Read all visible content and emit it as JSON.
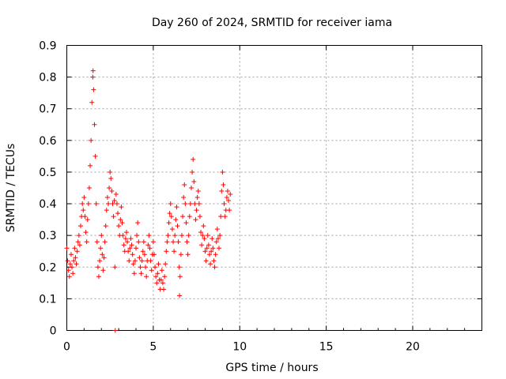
{
  "chart_data": {
    "type": "scatter",
    "title": "Day 260 of 2024, SRMTID for receiver iama",
    "xlabel": "GPS time / hours",
    "ylabel": "SRMTID / TECUs",
    "xlim": [
      0,
      24
    ],
    "ylim": [
      0,
      0.9
    ],
    "xticks": [
      "0",
      "5",
      "10",
      "15",
      "20"
    ],
    "yticks": [
      "0",
      "0.1",
      "0.2",
      "0.3",
      "0.4",
      "0.5",
      "0.6",
      "0.7",
      "0.8",
      "0.9"
    ],
    "grid": true,
    "marker": "+",
    "color": "#ff0000",
    "series": [
      {
        "name": "SRMTID",
        "points": [
          [
            0.0,
            0.26
          ],
          [
            0.05,
            0.22
          ],
          [
            0.1,
            0.19
          ],
          [
            0.15,
            0.17
          ],
          [
            0.2,
            0.21
          ],
          [
            0.25,
            0.24
          ],
          [
            0.3,
            0.2
          ],
          [
            0.35,
            0.18
          ],
          [
            0.4,
            0.22
          ],
          [
            0.45,
            0.26
          ],
          [
            0.5,
            0.23
          ],
          [
            0.55,
            0.21
          ],
          [
            0.6,
            0.25
          ],
          [
            0.65,
            0.28
          ],
          [
            0.7,
            0.3
          ],
          [
            0.75,
            0.27
          ],
          [
            0.8,
            0.33
          ],
          [
            0.85,
            0.36
          ],
          [
            0.9,
            0.4
          ],
          [
            0.95,
            0.38
          ],
          [
            1.0,
            0.42
          ],
          [
            1.05,
            0.36
          ],
          [
            1.1,
            0.31
          ],
          [
            1.15,
            0.28
          ],
          [
            1.2,
            0.35
          ],
          [
            1.25,
            0.4
          ],
          [
            1.3,
            0.45
          ],
          [
            1.35,
            0.52
          ],
          [
            1.4,
            0.6
          ],
          [
            1.45,
            0.72
          ],
          [
            1.5,
            0.8
          ],
          [
            1.52,
            0.82
          ],
          [
            1.55,
            0.76
          ],
          [
            1.6,
            0.65
          ],
          [
            1.65,
            0.55
          ],
          [
            1.7,
            0.4
          ],
          [
            1.75,
            0.28
          ],
          [
            1.8,
            0.2
          ],
          [
            1.85,
            0.17
          ],
          [
            1.9,
            0.22
          ],
          [
            1.95,
            0.26
          ],
          [
            2.0,
            0.3
          ],
          [
            2.05,
            0.24
          ],
          [
            2.1,
            0.19
          ],
          [
            2.15,
            0.23
          ],
          [
            2.2,
            0.28
          ],
          [
            2.25,
            0.33
          ],
          [
            2.3,
            0.38
          ],
          [
            2.35,
            0.42
          ],
          [
            2.4,
            0.4
          ],
          [
            2.45,
            0.45
          ],
          [
            2.5,
            0.5
          ],
          [
            2.55,
            0.48
          ],
          [
            2.6,
            0.44
          ],
          [
            2.65,
            0.4
          ],
          [
            2.7,
            0.36
          ],
          [
            2.75,
            0.41
          ],
          [
            2.78,
            0.2
          ],
          [
            2.8,
            0.0
          ],
          [
            2.85,
            0.43
          ],
          [
            2.9,
            0.4
          ],
          [
            2.95,
            0.37
          ],
          [
            3.0,
            0.33
          ],
          [
            3.05,
            0.3
          ],
          [
            3.1,
            0.35
          ],
          [
            3.15,
            0.39
          ],
          [
            3.2,
            0.34
          ],
          [
            3.25,
            0.3
          ],
          [
            3.3,
            0.27
          ],
          [
            3.35,
            0.25
          ],
          [
            3.4,
            0.29
          ],
          [
            3.45,
            0.31
          ],
          [
            3.5,
            0.28
          ],
          [
            3.55,
            0.25
          ],
          [
            3.6,
            0.22
          ],
          [
            3.65,
            0.26
          ],
          [
            3.7,
            0.29
          ],
          [
            3.75,
            0.27
          ],
          [
            3.8,
            0.24
          ],
          [
            3.85,
            0.21
          ],
          [
            3.9,
            0.18
          ],
          [
            3.95,
            0.22
          ],
          [
            4.0,
            0.26
          ],
          [
            4.05,
            0.3
          ],
          [
            4.1,
            0.34
          ],
          [
            4.15,
            0.28
          ],
          [
            4.2,
            0.23
          ],
          [
            4.25,
            0.2
          ],
          [
            4.3,
            0.18
          ],
          [
            4.35,
            0.22
          ],
          [
            4.4,
            0.25
          ],
          [
            4.45,
            0.28
          ],
          [
            4.5,
            0.24
          ],
          [
            4.55,
            0.2
          ],
          [
            4.6,
            0.17
          ],
          [
            4.65,
            0.22
          ],
          [
            4.7,
            0.27
          ],
          [
            4.75,
            0.3
          ],
          [
            4.8,
            0.26
          ],
          [
            4.85,
            0.22
          ],
          [
            4.9,
            0.19
          ],
          [
            4.95,
            0.24
          ],
          [
            5.0,
            0.28
          ],
          [
            5.05,
            0.24
          ],
          [
            5.1,
            0.2
          ],
          [
            5.15,
            0.17
          ],
          [
            5.2,
            0.15
          ],
          [
            5.25,
            0.18
          ],
          [
            5.3,
            0.21
          ],
          [
            5.35,
            0.16
          ],
          [
            5.4,
            0.13
          ],
          [
            5.45,
            0.16
          ],
          [
            5.5,
            0.19
          ],
          [
            5.55,
            0.15
          ],
          [
            5.6,
            0.13
          ],
          [
            5.65,
            0.17
          ],
          [
            5.7,
            0.21
          ],
          [
            5.75,
            0.25
          ],
          [
            5.8,
            0.28
          ],
          [
            5.85,
            0.3
          ],
          [
            5.9,
            0.34
          ],
          [
            5.95,
            0.37
          ],
          [
            6.0,
            0.4
          ],
          [
            6.05,
            0.36
          ],
          [
            6.1,
            0.32
          ],
          [
            6.15,
            0.28
          ],
          [
            6.2,
            0.25
          ],
          [
            6.25,
            0.3
          ],
          [
            6.3,
            0.35
          ],
          [
            6.35,
            0.39
          ],
          [
            6.4,
            0.33
          ],
          [
            6.45,
            0.28
          ],
          [
            6.5,
            0.2
          ],
          [
            6.52,
            0.11
          ],
          [
            6.55,
            0.17
          ],
          [
            6.6,
            0.24
          ],
          [
            6.65,
            0.3
          ],
          [
            6.7,
            0.36
          ],
          [
            6.75,
            0.42
          ],
          [
            6.8,
            0.46
          ],
          [
            6.85,
            0.4
          ],
          [
            6.9,
            0.34
          ],
          [
            6.95,
            0.28
          ],
          [
            7.0,
            0.24
          ],
          [
            7.05,
            0.3
          ],
          [
            7.1,
            0.36
          ],
          [
            7.15,
            0.4
          ],
          [
            7.2,
            0.45
          ],
          [
            7.25,
            0.5
          ],
          [
            7.3,
            0.54
          ],
          [
            7.35,
            0.47
          ],
          [
            7.4,
            0.4
          ],
          [
            7.45,
            0.35
          ],
          [
            7.5,
            0.38
          ],
          [
            7.55,
            0.42
          ],
          [
            7.6,
            0.44
          ],
          [
            7.65,
            0.4
          ],
          [
            7.7,
            0.36
          ],
          [
            7.75,
            0.31
          ],
          [
            7.8,
            0.27
          ],
          [
            7.85,
            0.3
          ],
          [
            7.9,
            0.33
          ],
          [
            7.95,
            0.29
          ],
          [
            8.0,
            0.25
          ],
          [
            8.05,
            0.22
          ],
          [
            8.1,
            0.26
          ],
          [
            8.15,
            0.3
          ],
          [
            8.2,
            0.27
          ],
          [
            8.25,
            0.24
          ],
          [
            8.3,
            0.21
          ],
          [
            8.35,
            0.25
          ],
          [
            8.4,
            0.29
          ],
          [
            8.45,
            0.26
          ],
          [
            8.5,
            0.22
          ],
          [
            8.55,
            0.2
          ],
          [
            8.6,
            0.24
          ],
          [
            8.65,
            0.28
          ],
          [
            8.7,
            0.32
          ],
          [
            8.75,
            0.29
          ],
          [
            8.8,
            0.26
          ],
          [
            8.85,
            0.3
          ],
          [
            8.9,
            0.36
          ],
          [
            8.95,
            0.44
          ],
          [
            9.0,
            0.5
          ],
          [
            9.05,
            0.46
          ],
          [
            9.1,
            0.4
          ],
          [
            9.15,
            0.36
          ],
          [
            9.2,
            0.38
          ],
          [
            9.25,
            0.42
          ],
          [
            9.3,
            0.44
          ],
          [
            9.35,
            0.41
          ],
          [
            9.4,
            0.38
          ],
          [
            9.45,
            0.43
          ]
        ]
      }
    ]
  }
}
